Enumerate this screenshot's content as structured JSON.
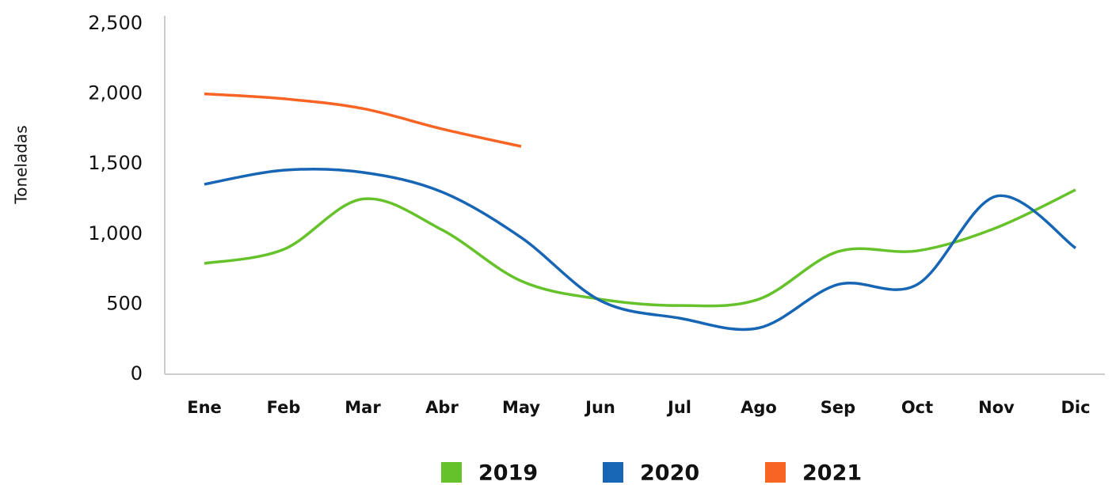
{
  "chart_data": {
    "type": "line",
    "y_label": "Toneladas",
    "categories": [
      "Ene",
      "Feb",
      "Mar",
      "Abr",
      "May",
      "Jun",
      "Jul",
      "Ago",
      "Sep",
      "Oct",
      "Nov",
      "Dic"
    ],
    "series": [
      {
        "name": "2019",
        "color": "#66c22a",
        "values": [
          790,
          890,
          1250,
          1030,
          665,
          535,
          490,
          535,
          875,
          880,
          1045,
          1315
        ]
      },
      {
        "name": "2020",
        "color": "#1765b5",
        "values": [
          1355,
          1455,
          1440,
          1300,
          975,
          525,
          400,
          330,
          640,
          640,
          1270,
          900
        ]
      },
      {
        "name": "2021",
        "color": "#f86423",
        "values": [
          2000,
          1965,
          1895,
          1750,
          1625,
          null,
          null,
          null,
          null,
          null,
          null,
          null
        ]
      }
    ],
    "ylim": [
      0,
      2500
    ],
    "yticks": [
      0,
      500,
      {
        "value": 1000,
        "label": "1,000"
      },
      {
        "value": 1500,
        "label": "1,500"
      },
      {
        "value": 2000,
        "label": "2,000"
      },
      {
        "value": 2500,
        "label": "2,500"
      }
    ],
    "grid": false,
    "smooth": true
  }
}
